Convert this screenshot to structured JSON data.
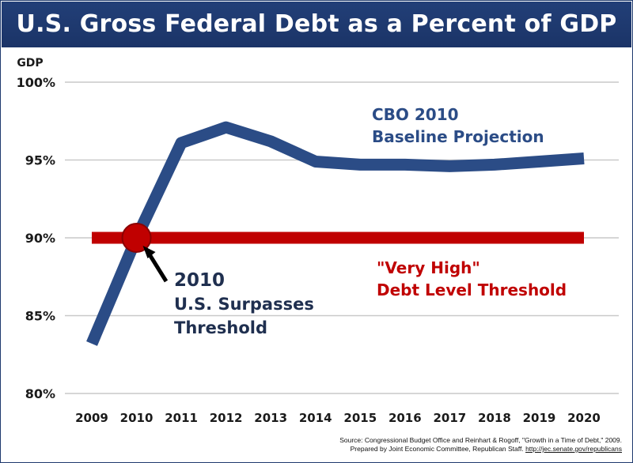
{
  "chart_data": {
    "type": "line",
    "title": "U.S. Gross Federal Debt as a Percent of GDP",
    "ylabel": "GDP",
    "ylim": [
      80,
      100
    ],
    "yticks": [
      100,
      95,
      90,
      85,
      80
    ],
    "ytick_labels": [
      "100%",
      "95%",
      "90%",
      "85%",
      "80%"
    ],
    "x": [
      "2009",
      "2010",
      "2011",
      "2012",
      "2013",
      "2014",
      "2015",
      "2016",
      "2017",
      "2018",
      "2019",
      "2020"
    ],
    "series": [
      {
        "name": "CBO 2010 Baseline Projection",
        "color": "#2b4c86",
        "values": [
          83.2,
          90.0,
          96.1,
          97.1,
          96.2,
          94.9,
          94.7,
          94.7,
          94.6,
          94.7,
          94.9,
          95.1
        ]
      },
      {
        "name": "\"Very High\" Debt Level Threshold",
        "color": "#c00000",
        "values": [
          90,
          90,
          90,
          90,
          90,
          90,
          90,
          90,
          90,
          90,
          90,
          90
        ]
      }
    ],
    "annotations": {
      "projection_line1": "CBO 2010",
      "projection_line2": "Baseline Projection",
      "threshold_line1": "\"Very High\"",
      "threshold_line2": "Debt Level Threshold",
      "crossing_year": "2010",
      "crossing_line1": "U.S. Surpasses",
      "crossing_line2": "Threshold"
    },
    "grid": true
  },
  "source": {
    "line1": "Source: Congressional Budget Office and Reinhart & Rogoff, \"Growth in a Time of Debt,\" 2009.",
    "line2": "Prepared by Joint Economic Committee, Republican Staff.",
    "link": "http://jec.senate.gov/republicans"
  }
}
